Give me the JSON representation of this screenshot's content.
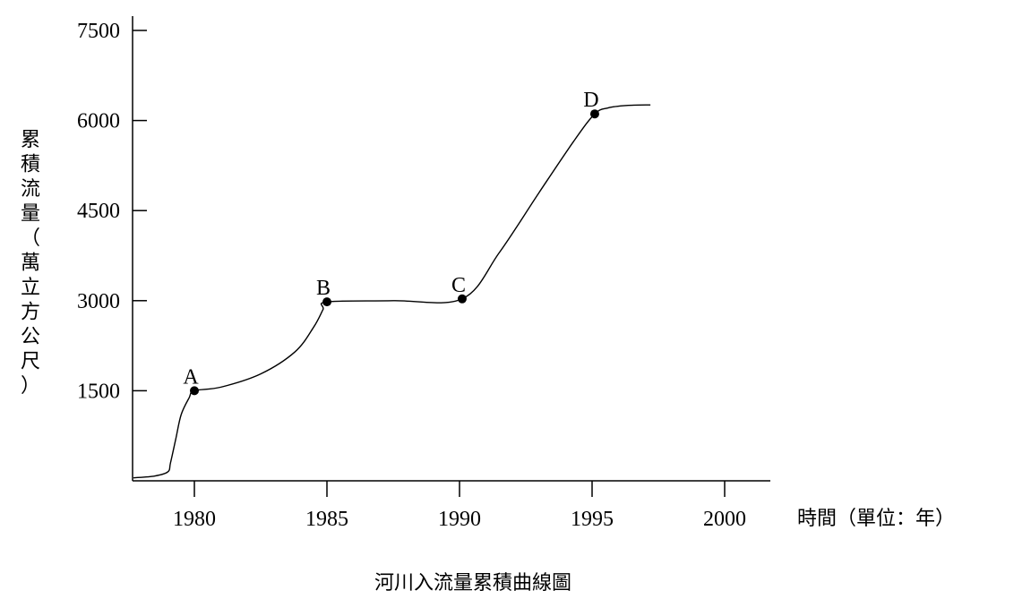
{
  "chart_data": {
    "type": "line",
    "title": "河川入流量累積曲線圖",
    "xlabel": "時間（單位：年）",
    "ylabel_chars": [
      "累",
      "積",
      "流",
      "量",
      "（",
      "萬",
      "立",
      "方",
      "公",
      "尺",
      "）"
    ],
    "x_ticks": [
      1980,
      1985,
      1990,
      1995,
      2000
    ],
    "y_ticks": [
      1500,
      3000,
      4500,
      6000,
      7500
    ],
    "xlim": [
      1977.7,
      2001.5
    ],
    "ylim": [
      0,
      7750
    ],
    "grid": false,
    "series": [
      {
        "x": [
          1977.7,
          1978.5,
          1979.0,
          1979.1,
          1979.3,
          1979.5,
          1979.8,
          1980.0,
          1981.0,
          1982.5,
          1983.8,
          1984.5,
          1984.85,
          1985.0,
          1987.5,
          1990.1,
          1991.5,
          1993.0,
          1994.3,
          1995.1,
          1995.6,
          1996.3,
          1997.2
        ],
        "y": [
          50,
          80,
          150,
          300,
          700,
          1100,
          1380,
          1500,
          1560,
          1780,
          2150,
          2560,
          2850,
          2980,
          3000,
          3030,
          3800,
          4800,
          5650,
          6110,
          6210,
          6250,
          6260
        ]
      }
    ],
    "marked_points": [
      {
        "label": "A",
        "x": 1980.0,
        "y": 1500
      },
      {
        "label": "B",
        "x": 1985.0,
        "y": 2980
      },
      {
        "label": "C",
        "x": 1990.1,
        "y": 3030
      },
      {
        "label": "D",
        "x": 1995.1,
        "y": 6110
      }
    ]
  }
}
